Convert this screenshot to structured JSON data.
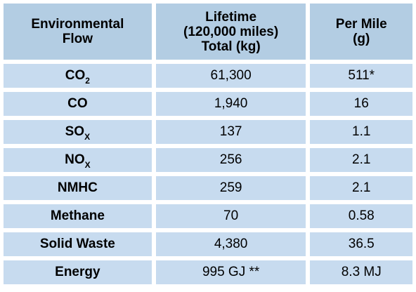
{
  "header": {
    "col1": [
      "Environmental",
      "Flow"
    ],
    "col2": [
      "Lifetime",
      "(120,000 miles)",
      "Total (kg)"
    ],
    "col3": [
      "Per Mile",
      "(g)"
    ]
  },
  "rows": [
    {
      "label": "CO",
      "sub": "2",
      "total": "61,300",
      "per_mile": "511*"
    },
    {
      "label": "CO",
      "sub": "",
      "total": "1,940",
      "per_mile": "16"
    },
    {
      "label": "SO",
      "sub": "X",
      "total": "137",
      "per_mile": "1.1"
    },
    {
      "label": "NO",
      "sub": "X",
      "total": "256",
      "per_mile": "2.1"
    },
    {
      "label": "NMHC",
      "sub": "",
      "total": "259",
      "per_mile": "2.1"
    },
    {
      "label": "Methane",
      "sub": "",
      "total": "70",
      "per_mile": "0.58"
    },
    {
      "label": "Solid Waste",
      "sub": "",
      "total": "4,380",
      "per_mile": "36.5"
    },
    {
      "label": "Energy",
      "sub": "",
      "total": "995 GJ **",
      "per_mile": "8.3 MJ"
    }
  ]
}
